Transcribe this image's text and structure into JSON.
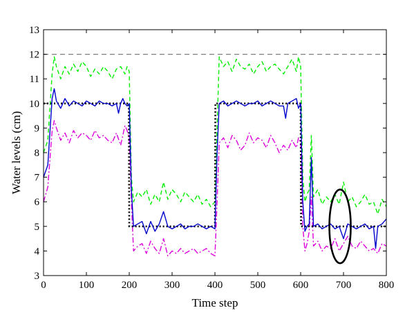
{
  "chart_data": {
    "type": "line",
    "title": "",
    "xlabel": "Time step",
    "ylabel": "Water levels (cm)",
    "xlim": [
      0,
      800
    ],
    "ylim": [
      3,
      13
    ],
    "xticks": [
      0,
      100,
      200,
      300,
      400,
      500,
      600,
      700,
      800
    ],
    "yticks": [
      3,
      4,
      5,
      6,
      7,
      8,
      9,
      10,
      11,
      12,
      13
    ],
    "grid": false,
    "legend": "none",
    "series": [
      {
        "color": "#000000",
        "style": "dotted",
        "x": [
          0,
          199,
          200,
          400,
          401,
          600,
          601,
          800
        ],
        "y": [
          10,
          10,
          5,
          5,
          10,
          10,
          5,
          5
        ]
      },
      {
        "color": "#0000cc",
        "style": "solid",
        "x": [
          0,
          10,
          20,
          25,
          30,
          40,
          50,
          60,
          70,
          80,
          90,
          100,
          110,
          120,
          130,
          140,
          150,
          160,
          170,
          175,
          180,
          185,
          190,
          195,
          200,
          205,
          210,
          220,
          230,
          240,
          250,
          260,
          270,
          280,
          290,
          300,
          310,
          320,
          330,
          340,
          350,
          360,
          370,
          380,
          390,
          400,
          405,
          410,
          420,
          430,
          440,
          450,
          460,
          470,
          480,
          490,
          500,
          510,
          520,
          530,
          540,
          550,
          560,
          565,
          570,
          580,
          590,
          595,
          600,
          605,
          610,
          615,
          620,
          625,
          630,
          640,
          650,
          660,
          670,
          680,
          690,
          700,
          710,
          720,
          730,
          740,
          750,
          760,
          770,
          775,
          780,
          790,
          800
        ],
        "y": [
          7.0,
          7.5,
          10.2,
          10.6,
          10.1,
          9.8,
          10.2,
          9.9,
          10.1,
          10.0,
          9.9,
          10.1,
          10.0,
          9.9,
          10.1,
          10.0,
          10.0,
          9.9,
          10.0,
          9.6,
          10.0,
          10.2,
          10.0,
          9.9,
          10.0,
          6.5,
          5.0,
          5.1,
          5.2,
          4.7,
          5.2,
          4.8,
          5.1,
          5.6,
          5.0,
          4.9,
          5.0,
          5.1,
          4.9,
          5.0,
          5.0,
          5.1,
          5.0,
          4.9,
          5.0,
          4.9,
          8.0,
          10.0,
          10.1,
          9.9,
          10.0,
          10.1,
          10.0,
          9.9,
          10.0,
          10.0,
          10.1,
          9.9,
          10.0,
          10.1,
          10.0,
          9.9,
          9.9,
          9.4,
          10.0,
          10.1,
          10.2,
          9.8,
          10.0,
          6.0,
          4.8,
          5.0,
          5.1,
          7.8,
          5.0,
          5.1,
          4.9,
          5.0,
          5.1,
          4.9,
          5.0,
          4.5,
          5.1,
          5.0,
          4.9,
          5.0,
          5.1,
          4.9,
          5.0,
          4.1,
          5.0,
          5.1,
          5.3
        ]
      },
      {
        "color": "#00ee00",
        "style": "dashed",
        "x": [
          0,
          10,
          20,
          25,
          30,
          40,
          50,
          60,
          70,
          80,
          90,
          100,
          110,
          120,
          130,
          140,
          150,
          160,
          170,
          180,
          190,
          195,
          200,
          205,
          210,
          220,
          230,
          240,
          250,
          260,
          270,
          280,
          290,
          300,
          310,
          320,
          330,
          340,
          350,
          360,
          370,
          380,
          390,
          400,
          405,
          410,
          420,
          430,
          440,
          450,
          460,
          470,
          480,
          490,
          500,
          510,
          520,
          530,
          540,
          550,
          560,
          570,
          580,
          590,
          595,
          600,
          605,
          610,
          615,
          620,
          625,
          630,
          640,
          650,
          660,
          670,
          680,
          690,
          700,
          710,
          720,
          730,
          740,
          750,
          760,
          770,
          780,
          790,
          800
        ],
        "y": [
          8.0,
          8.5,
          11.2,
          11.9,
          11.5,
          11.0,
          11.5,
          11.2,
          11.6,
          11.3,
          11.7,
          11.5,
          11.1,
          11.4,
          11.2,
          11.5,
          11.3,
          11.0,
          11.4,
          11.5,
          11.2,
          11.5,
          11.3,
          7.0,
          6.0,
          6.4,
          6.2,
          6.5,
          5.9,
          6.3,
          6.0,
          6.8,
          6.1,
          6.5,
          6.3,
          6.0,
          6.4,
          6.2,
          6.0,
          6.3,
          5.9,
          6.1,
          5.8,
          6.0,
          9.0,
          11.9,
          11.5,
          11.7,
          11.3,
          11.8,
          11.5,
          11.4,
          11.6,
          11.2,
          11.5,
          11.7,
          11.3,
          11.5,
          11.6,
          11.4,
          11.2,
          11.5,
          11.8,
          11.3,
          11.9,
          11.5,
          7.0,
          6.0,
          6.3,
          6.5,
          8.7,
          6.2,
          6.5,
          5.9,
          6.2,
          6.0,
          6.3,
          5.9,
          6.8,
          6.0,
          6.2,
          5.8,
          6.0,
          6.3,
          5.9,
          6.0,
          5.5,
          6.1,
          5.8
        ]
      },
      {
        "color": "#dd00dd",
        "style": "dashdot",
        "x": [
          0,
          10,
          20,
          25,
          30,
          40,
          50,
          60,
          70,
          80,
          90,
          100,
          110,
          120,
          130,
          140,
          150,
          160,
          170,
          180,
          190,
          195,
          200,
          205,
          210,
          220,
          230,
          240,
          250,
          260,
          270,
          280,
          290,
          300,
          310,
          320,
          330,
          340,
          350,
          360,
          370,
          380,
          390,
          400,
          405,
          410,
          420,
          430,
          440,
          450,
          460,
          470,
          480,
          490,
          500,
          510,
          520,
          530,
          540,
          550,
          560,
          570,
          580,
          590,
          595,
          600,
          605,
          610,
          615,
          620,
          625,
          630,
          640,
          650,
          660,
          670,
          680,
          690,
          700,
          710,
          720,
          730,
          740,
          750,
          760,
          770,
          780,
          790,
          800
        ],
        "y": [
          6.0,
          6.6,
          8.9,
          9.3,
          9.0,
          8.5,
          8.8,
          8.4,
          8.9,
          8.6,
          8.8,
          8.7,
          8.5,
          8.9,
          8.6,
          8.7,
          8.5,
          8.4,
          8.8,
          8.3,
          9.1,
          8.9,
          8.6,
          6.0,
          4.0,
          4.2,
          4.3,
          3.9,
          4.4,
          4.1,
          3.9,
          4.5,
          3.8,
          4.0,
          3.9,
          4.1,
          3.9,
          4.0,
          4.1,
          3.9,
          4.0,
          4.1,
          3.9,
          3.8,
          6.0,
          8.4,
          8.6,
          8.2,
          8.7,
          8.5,
          8.1,
          8.3,
          8.8,
          8.4,
          8.6,
          8.5,
          8.2,
          8.7,
          8.4,
          8.0,
          8.3,
          8.1,
          8.5,
          8.2,
          8.6,
          8.4,
          5.0,
          4.0,
          4.3,
          4.8,
          6.2,
          4.2,
          4.4,
          4.0,
          4.2,
          4.1,
          4.5,
          4.0,
          4.3,
          4.6,
          4.2,
          4.1,
          4.4,
          4.2,
          4.0,
          4.1,
          3.9,
          4.3,
          4.2
        ]
      }
    ],
    "reference_line": {
      "y": 12,
      "color": "#7f7f7f",
      "style": "dashed"
    },
    "annotation": {
      "shape": "ellipse",
      "cx": 692,
      "cy": 5.0,
      "rx": 25,
      "ry": 1.5,
      "color": "#000000"
    }
  }
}
